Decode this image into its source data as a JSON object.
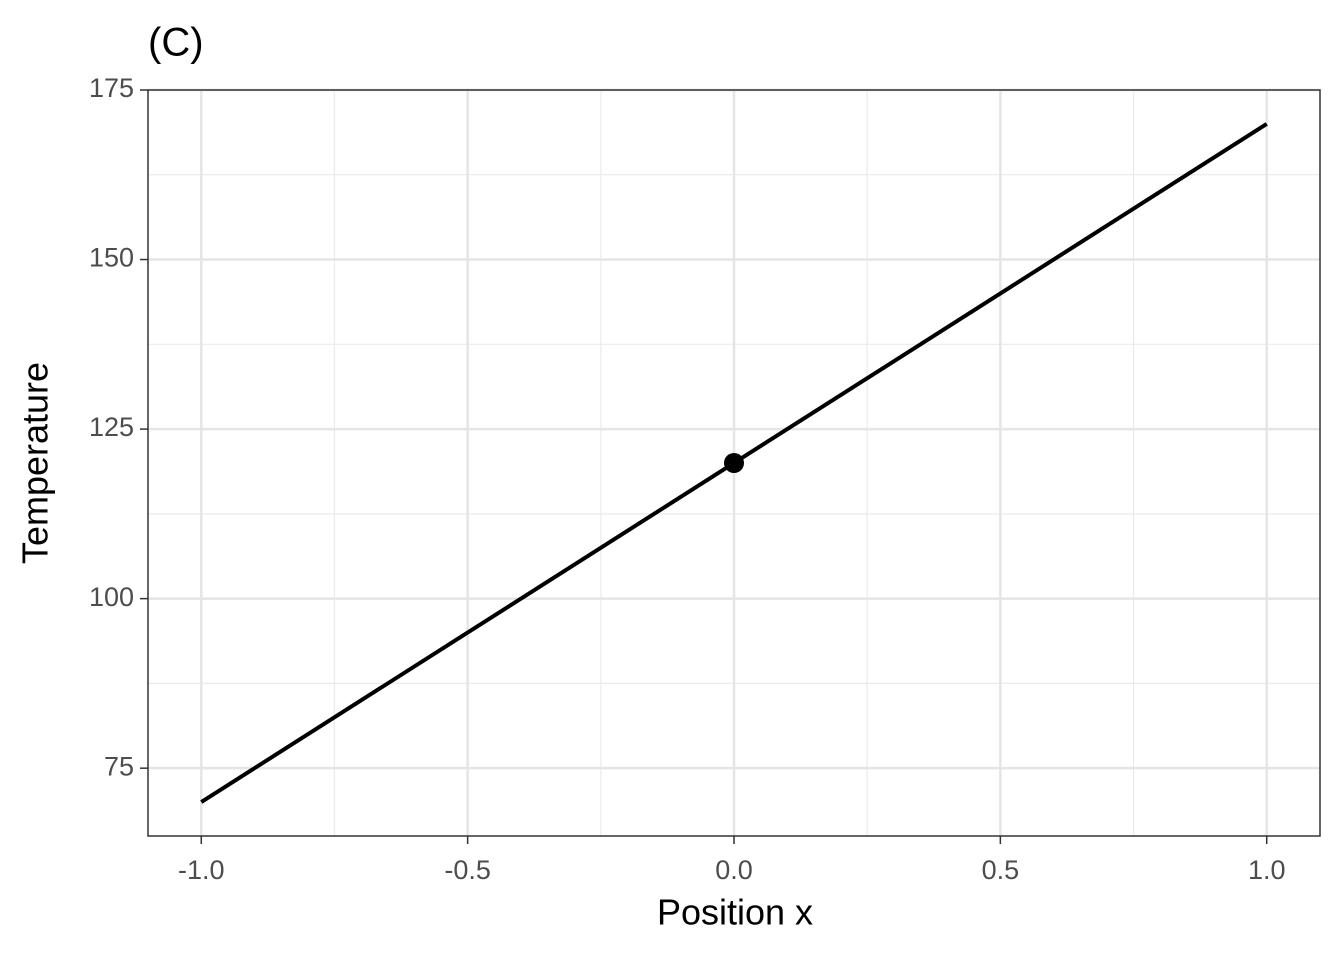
{
  "chart_data": {
    "type": "line",
    "title": "(C)",
    "x_label": "Position x",
    "y_label": "Temperature",
    "series": [
      {
        "mark": "line",
        "color": "#000000",
        "x": [
          -1,
          1
        ],
        "values": [
          70,
          170
        ]
      },
      {
        "mark": "point",
        "color": "#000000",
        "x": [
          0
        ],
        "values": [
          120
        ]
      }
    ],
    "xlim": [
      -1.1,
      1.1
    ],
    "ylim": [
      65,
      175
    ],
    "xticks": [
      {
        "value": -1,
        "label": "-1.0"
      },
      {
        "value": -0.5,
        "label": "-0.5"
      },
      {
        "value": 0,
        "label": "0.0"
      },
      {
        "value": 0.5,
        "label": "0.5"
      },
      {
        "value": 1,
        "label": "1.0"
      }
    ],
    "yticks": [
      75,
      100,
      125,
      150,
      175
    ],
    "grid": true
  }
}
